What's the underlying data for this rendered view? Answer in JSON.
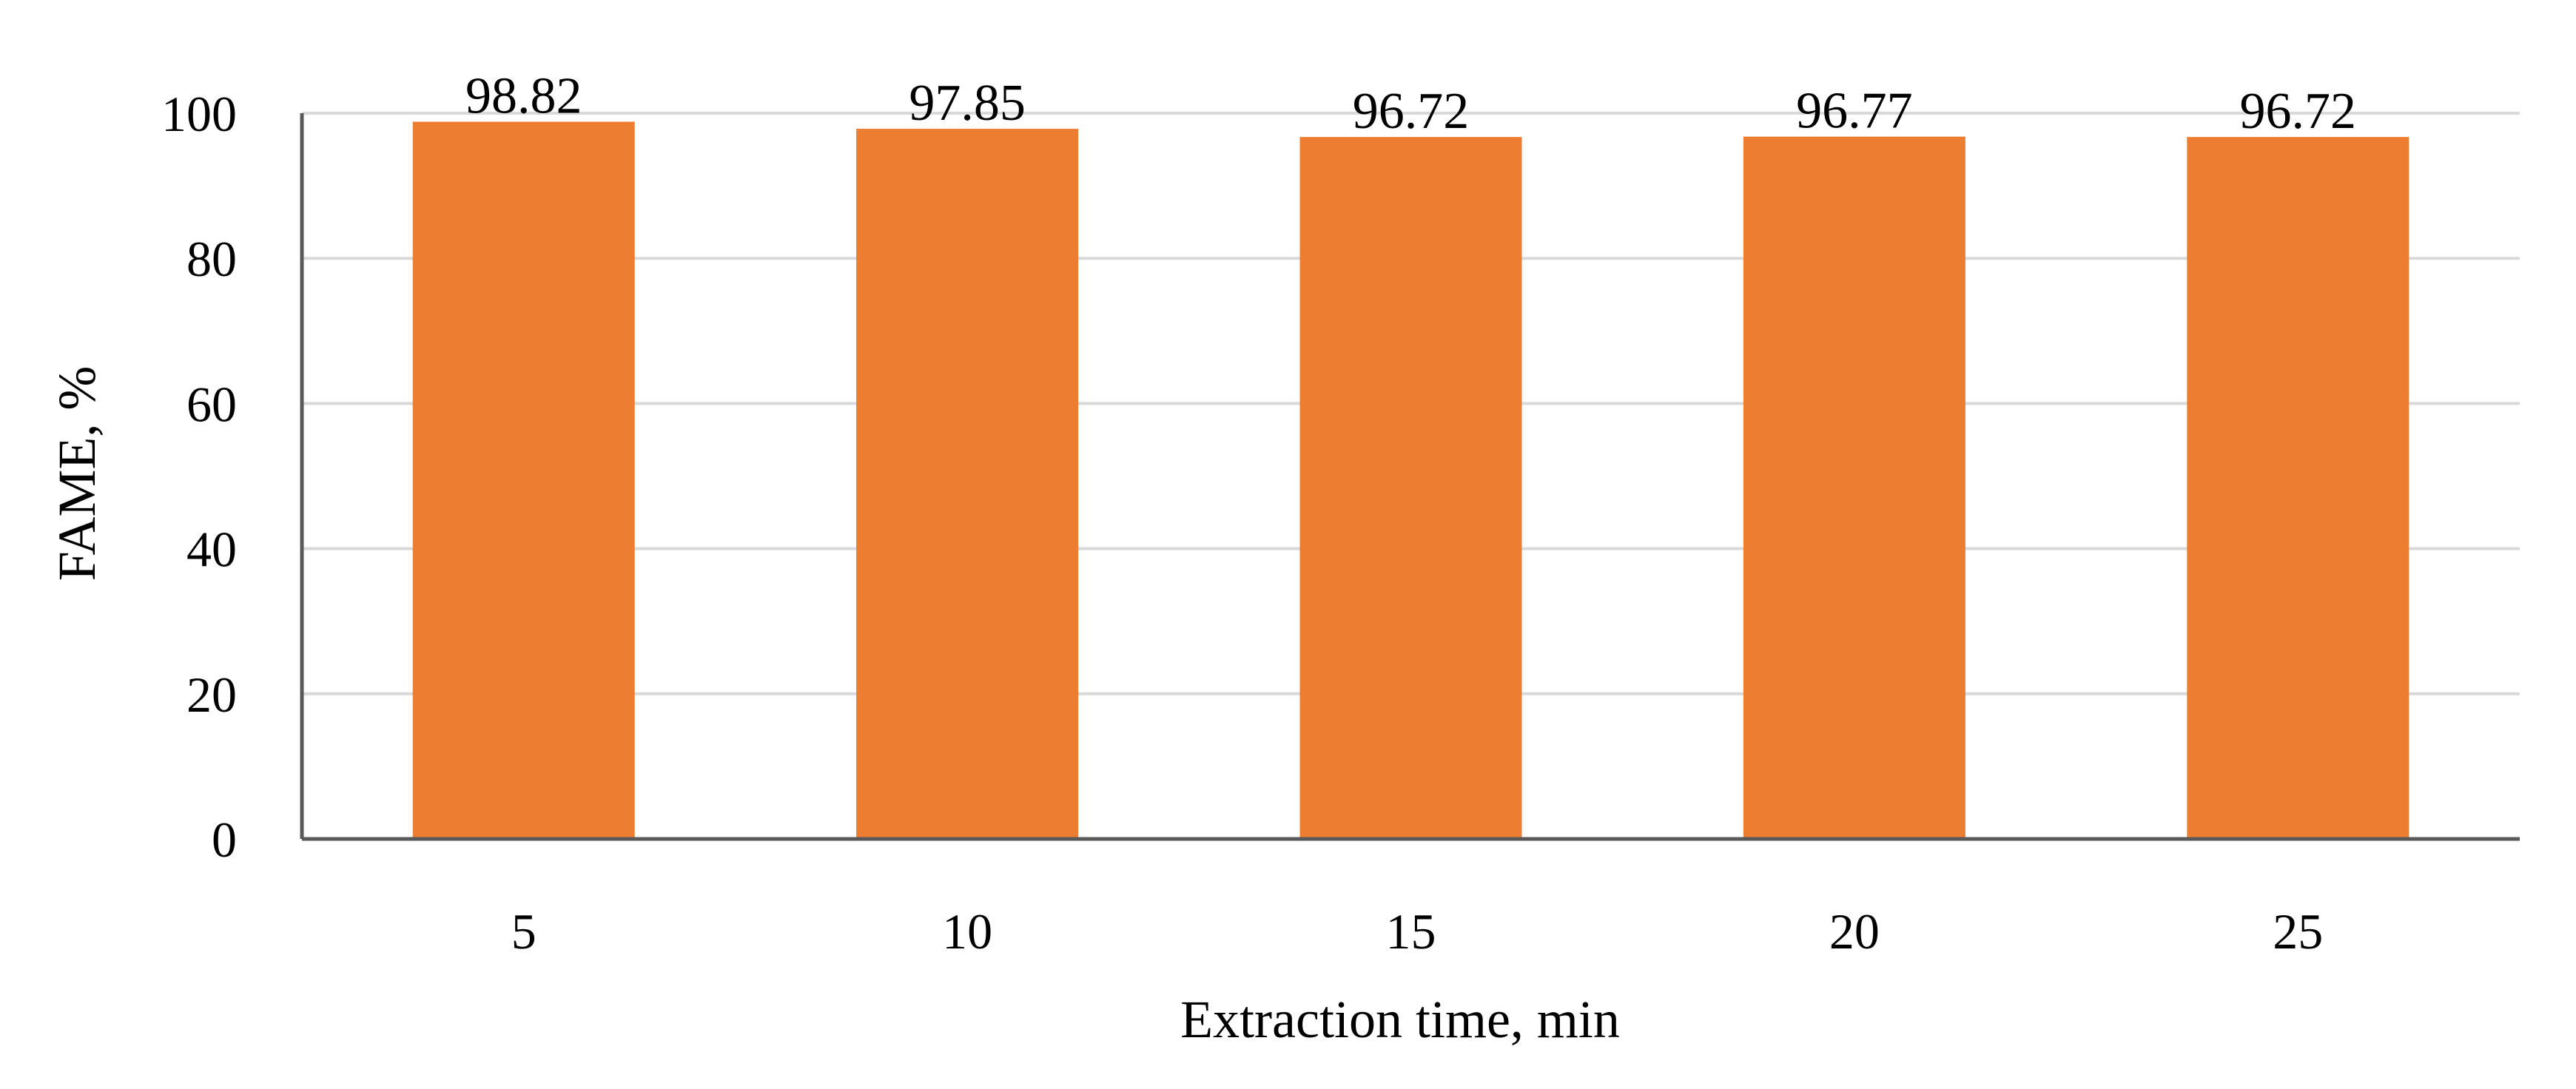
{
  "chart_data": {
    "type": "bar",
    "title": "",
    "xlabel": "Extraction time, min",
    "ylabel": "FAME, %",
    "categories": [
      "5",
      "10",
      "15",
      "20",
      "25"
    ],
    "values": [
      98.82,
      97.85,
      96.72,
      96.77,
      96.72
    ],
    "value_labels": [
      "98.82",
      "97.85",
      "96.72",
      "96.77",
      "96.72"
    ],
    "ylim": [
      0,
      100
    ],
    "yticks": [
      0,
      20,
      40,
      60,
      80,
      100
    ],
    "ytick_labels": [
      "0",
      "20",
      "40",
      "60",
      "80",
      "100"
    ],
    "grid": true,
    "legend": "none",
    "colors": {
      "bar": "#ED7D31",
      "gridline": "#D9D9D9",
      "axis": "#595959"
    }
  }
}
